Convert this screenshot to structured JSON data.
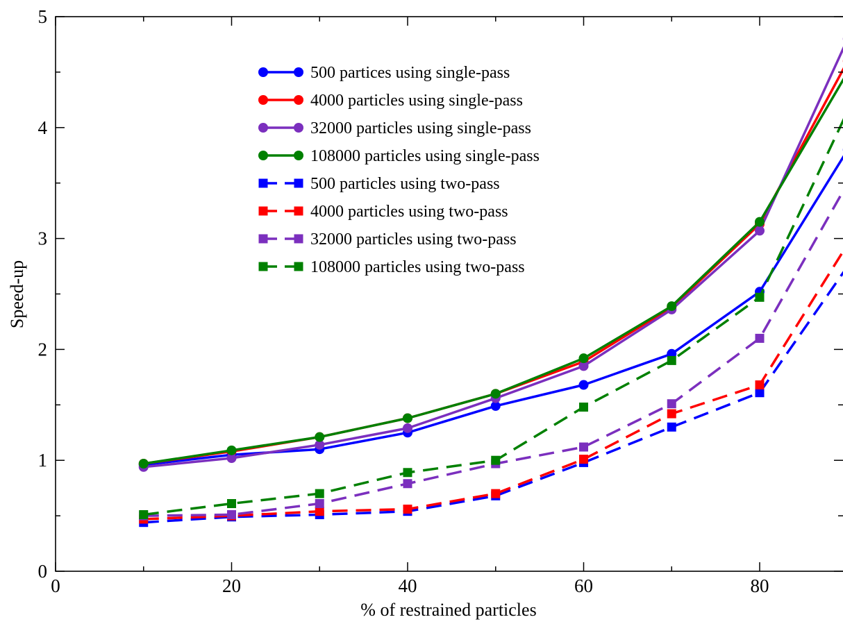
{
  "chart_data": {
    "type": "line",
    "xlabel": "% of restrained particles",
    "ylabel": "Speed-up",
    "xlim": [
      0,
      90
    ],
    "ylim": [
      0,
      5
    ],
    "x_ticks": [
      0,
      20,
      40,
      60,
      80
    ],
    "y_ticks": [
      0,
      1,
      2,
      3,
      4,
      5
    ],
    "grid": false,
    "legend_position": "top-center",
    "x": [
      10,
      20,
      30,
      40,
      50,
      60,
      70,
      80,
      90
    ],
    "series": [
      {
        "name": "500 partices using single-pass",
        "color": "#0000ff",
        "style": "solid",
        "marker": "circle",
        "values": [
          0.96,
          1.05,
          1.1,
          1.25,
          1.49,
          1.68,
          1.96,
          2.52,
          3.8
        ]
      },
      {
        "name": "4000 particles using single-pass",
        "color": "#ff0000",
        "style": "solid",
        "marker": "circle",
        "values": [
          0.97,
          1.08,
          1.21,
          1.38,
          1.6,
          1.89,
          2.38,
          3.13,
          4.6
        ]
      },
      {
        "name": "32000 particles using single-pass",
        "color": "#7b2fbe",
        "style": "solid",
        "marker": "circle",
        "values": [
          0.94,
          1.02,
          1.14,
          1.29,
          1.56,
          1.85,
          2.36,
          3.07,
          4.8
        ]
      },
      {
        "name": "108000 particles using single-pass",
        "color": "#008000",
        "style": "solid",
        "marker": "circle",
        "values": [
          0.97,
          1.09,
          1.21,
          1.38,
          1.6,
          1.92,
          2.39,
          3.15,
          4.5
        ]
      },
      {
        "name": "500 particles using two-pass",
        "color": "#0000ff",
        "style": "dashed",
        "marker": "square",
        "values": [
          0.44,
          0.49,
          0.51,
          0.54,
          0.68,
          0.98,
          1.3,
          1.61,
          2.75
        ]
      },
      {
        "name": "4000 particles using two-pass",
        "color": "#ff0000",
        "style": "dashed",
        "marker": "square",
        "values": [
          0.47,
          0.5,
          0.54,
          0.56,
          0.7,
          1.01,
          1.42,
          1.68,
          2.95
        ]
      },
      {
        "name": "32000 particles using two-pass",
        "color": "#7b2fbe",
        "style": "dashed",
        "marker": "square",
        "values": [
          0.5,
          0.51,
          0.61,
          0.79,
          0.97,
          1.12,
          1.51,
          2.1,
          3.5
        ]
      },
      {
        "name": "108000 particles using two-pass",
        "color": "#008000",
        "style": "dashed",
        "marker": "square",
        "values": [
          0.51,
          0.61,
          0.7,
          0.89,
          1.0,
          1.48,
          1.9,
          2.47,
          4.15
        ]
      }
    ]
  }
}
